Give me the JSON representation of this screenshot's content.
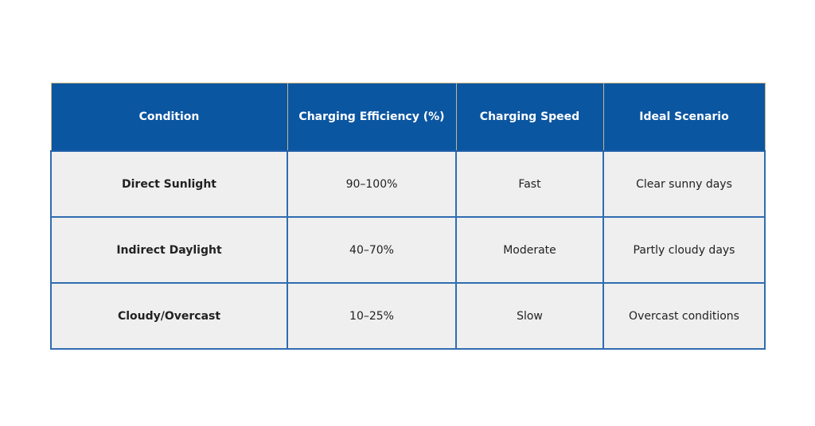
{
  "table": {
    "header": [
      "Condition",
      "Charging Efficiency (%)",
      "Charging Speed",
      "Ideal Scenario"
    ],
    "rows": [
      [
        "Direct Sunlight",
        "90–100%",
        "Fast",
        "Clear sunny days"
      ],
      [
        "Indirect Daylight",
        "40–70%",
        "Moderate",
        "Partly cloudy days"
      ],
      [
        "Cloudy/Overcast",
        "10–25%",
        "Slow",
        "Overcast conditions"
      ]
    ]
  }
}
